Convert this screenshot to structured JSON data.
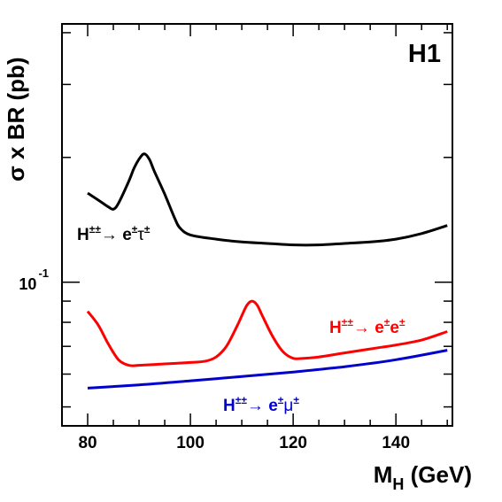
{
  "chart_data": {
    "type": "line",
    "tag": "H1",
    "xlabel": {
      "main": "M",
      "sub": "H",
      "rest": " (GeV)"
    },
    "ylabel": "σ x BR (pb)",
    "xlim": [
      75,
      151
    ],
    "ylim": [
      0.045,
      0.42
    ],
    "yscale": "log",
    "x_ticks": [
      80,
      100,
      120,
      140
    ],
    "y_tick_label": {
      "base": "10",
      "exp": "-1"
    },
    "series": [
      {
        "name": "H±± → e±τ±",
        "label_parts": {
          "h": "H",
          "hsup": "±±",
          "arrow": "→ ",
          "l1": "e",
          "l1sup": "±",
          "l2": "τ",
          "l2sup": "±"
        },
        "color": "#000000",
        "x": [
          80,
          82,
          84,
          85,
          86,
          88,
          89,
          90,
          91,
          92,
          93,
          95,
          97,
          98,
          100,
          105,
          110,
          115,
          120,
          125,
          130,
          135,
          140,
          145,
          150
        ],
        "y": [
          0.164,
          0.158,
          0.152,
          0.15,
          0.155,
          0.175,
          0.188,
          0.198,
          0.204,
          0.198,
          0.185,
          0.163,
          0.142,
          0.135,
          0.13,
          0.127,
          0.125,
          0.124,
          0.123,
          0.123,
          0.124,
          0.125,
          0.127,
          0.131,
          0.137
        ]
      },
      {
        "name": "H±± → e±e±",
        "label_parts": {
          "h": "H",
          "hsup": "±±",
          "arrow": "→ ",
          "l1": "e",
          "l1sup": "±",
          "l2": "e",
          "l2sup": "±"
        },
        "color": "#ff0000",
        "x": [
          80,
          82,
          84,
          86,
          88,
          90,
          95,
          100,
          103,
          105,
          107,
          109,
          110,
          111,
          112,
          113,
          114,
          116,
          118,
          120,
          122,
          125,
          130,
          135,
          140,
          145,
          150
        ],
        "y": [
          0.085,
          0.079,
          0.071,
          0.065,
          0.063,
          0.063,
          0.0635,
          0.064,
          0.0645,
          0.066,
          0.07,
          0.078,
          0.083,
          0.088,
          0.09,
          0.088,
          0.083,
          0.074,
          0.068,
          0.0655,
          0.0655,
          0.066,
          0.0675,
          0.069,
          0.0705,
          0.0725,
          0.076
        ]
      },
      {
        "name": "H±± → e±μ±",
        "label_parts": {
          "h": "H",
          "hsup": "±±",
          "arrow": "→ ",
          "l1": "e",
          "l1sup": "±",
          "l2": "μ",
          "l2sup": "±"
        },
        "color": "#0000cc",
        "x": [
          80,
          90,
          100,
          110,
          120,
          130,
          140,
          150
        ],
        "y": [
          0.0555,
          0.0565,
          0.0578,
          0.0592,
          0.0607,
          0.0625,
          0.065,
          0.0685
        ]
      }
    ],
    "grid": false
  }
}
